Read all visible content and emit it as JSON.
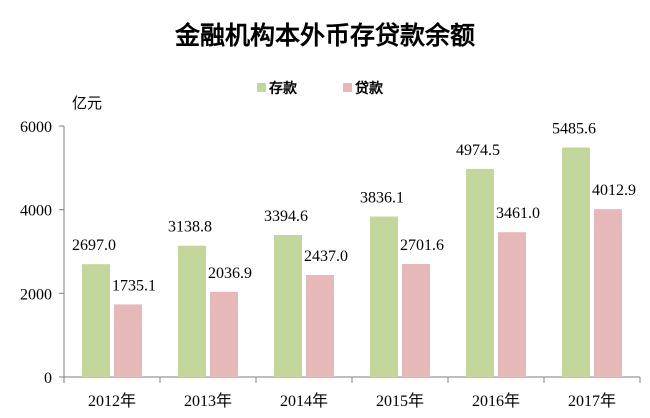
{
  "chart_data": {
    "type": "bar",
    "title": "金融机构本外币存贷款余额",
    "ylabel": "亿元",
    "categories": [
      "2012年",
      "2013年",
      "2014年",
      "2015年",
      "2016年",
      "2017年"
    ],
    "series": [
      {
        "name": "存款",
        "color": "#c3d69b",
        "values": [
          2697.0,
          3138.8,
          3394.6,
          3836.1,
          4974.5,
          5485.6
        ],
        "labels": [
          "2697.0",
          "3138.8",
          "3394.6",
          "3836.1",
          "4974.5",
          "5485.6"
        ]
      },
      {
        "name": "贷款",
        "color": "#e6b9b8",
        "values": [
          1735.1,
          2036.9,
          2437.0,
          2701.6,
          3461.0,
          4012.9
        ],
        "labels": [
          "1735.1",
          "2036.9",
          "2437.0",
          "2701.6",
          "3461.0",
          "4012.9"
        ]
      }
    ],
    "ylim": [
      0,
      6000
    ],
    "yticks": [
      0,
      2000,
      4000,
      6000
    ],
    "grid": false,
    "legend_position": "top-center"
  }
}
